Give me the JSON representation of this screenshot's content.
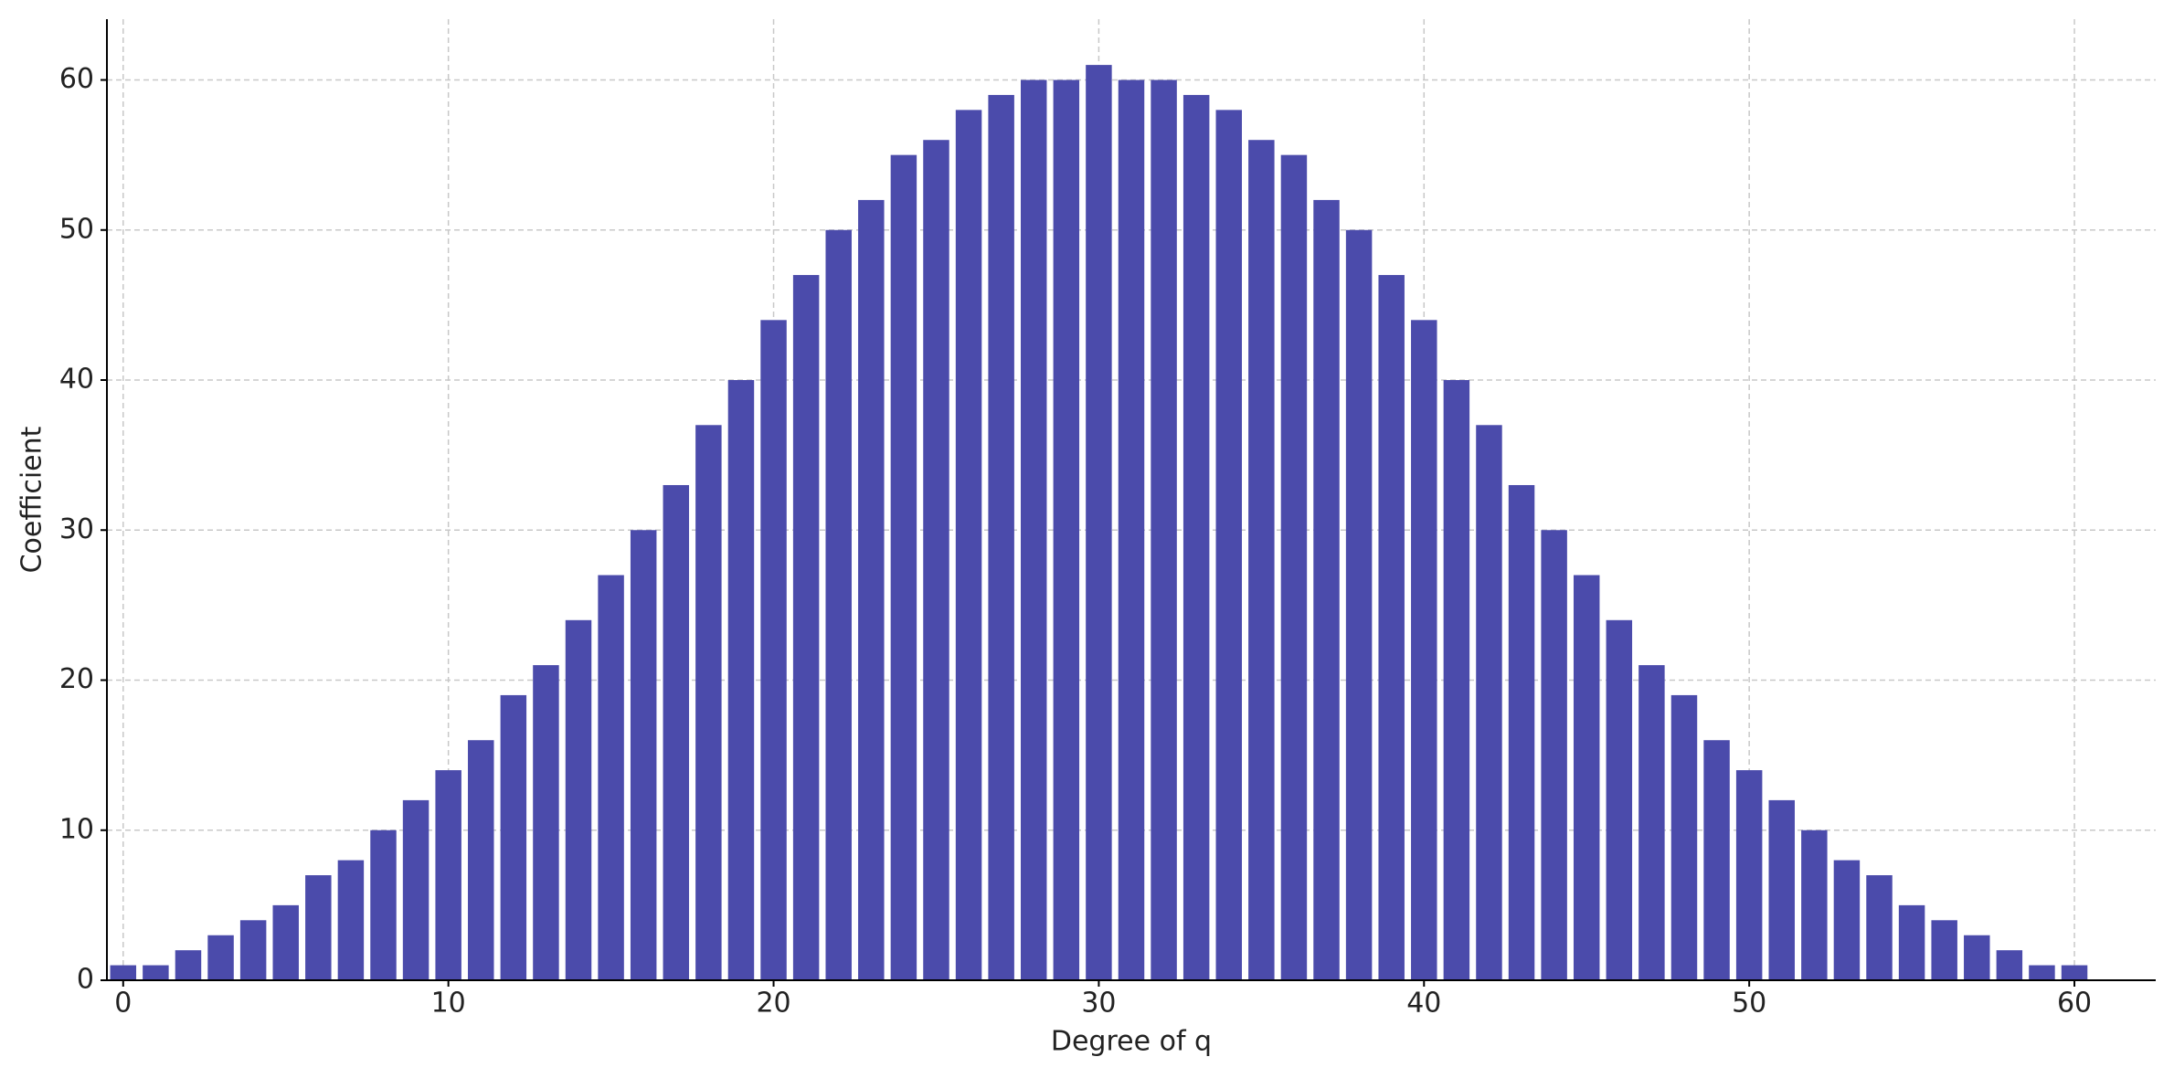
{
  "chart_data": {
    "type": "bar",
    "x_label": "Degree of q",
    "y_label": "Coefficient",
    "x": [
      0,
      1,
      2,
      3,
      4,
      5,
      6,
      7,
      8,
      9,
      10,
      11,
      12,
      13,
      14,
      15,
      16,
      17,
      18,
      19,
      20,
      21,
      22,
      23,
      24,
      25,
      26,
      27,
      28,
      29,
      30,
      31,
      32,
      33,
      34,
      35,
      36,
      37,
      38,
      39,
      40,
      41,
      42,
      43,
      44,
      45,
      46,
      47,
      48,
      49,
      50,
      51,
      52,
      53,
      54,
      55,
      56,
      57,
      58,
      59,
      60
    ],
    "values": [
      1,
      1,
      2,
      3,
      4,
      5,
      7,
      8,
      10,
      12,
      14,
      16,
      19,
      21,
      24,
      27,
      30,
      33,
      37,
      40,
      44,
      47,
      50,
      52,
      55,
      56,
      58,
      59,
      60,
      60,
      61,
      60,
      60,
      59,
      58,
      56,
      55,
      52,
      50,
      47,
      44,
      40,
      37,
      33,
      30,
      27,
      24,
      21,
      19,
      16,
      14,
      12,
      10,
      8,
      7,
      5,
      4,
      3,
      2,
      1,
      1
    ],
    "color": "#4b4bab",
    "xlim": [
      -0.5,
      62.5
    ],
    "xticks": [
      0,
      10,
      20,
      30,
      40,
      50,
      60
    ],
    "ylim": [
      0,
      64.05
    ],
    "yticks": [
      0,
      10,
      20,
      30,
      40,
      50,
      60
    ],
    "grid": true
  }
}
